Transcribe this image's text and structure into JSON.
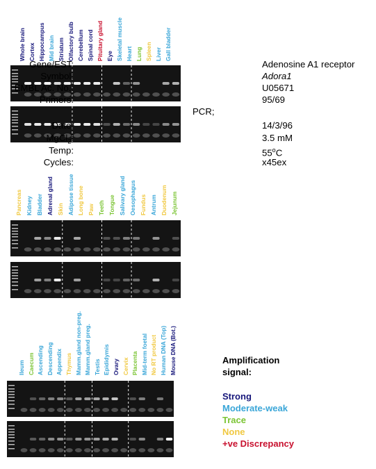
{
  "colors": {
    "strong": "#16167a",
    "moderate": "#3aa6d8",
    "trace": "#7bc434",
    "none": "#f0c840",
    "discrepancy": "#c8102e"
  },
  "panels": [
    {
      "lanes": [
        {
          "label": "Whole brain",
          "signal": "strong"
        },
        {
          "label": "Cortex",
          "signal": "strong"
        },
        {
          "label": "Hippocampus",
          "signal": "strong"
        },
        {
          "label": "Mid brain",
          "signal": "moderate"
        },
        {
          "label": "Striatum",
          "signal": "strong"
        },
        {
          "label": "Olfactory bulb",
          "signal": "strong"
        },
        {
          "label": "Cerebellum",
          "signal": "strong"
        },
        {
          "label": "Spinal cord",
          "signal": "strong"
        },
        {
          "label": "Pituitary gland",
          "signal": "discrepancy"
        },
        {
          "label": "Eye",
          "signal": "strong"
        },
        {
          "label": "Skeletal muscle",
          "signal": "moderate"
        },
        {
          "label": "Heart",
          "signal": "moderate"
        },
        {
          "label": "Lung",
          "signal": "trace"
        },
        {
          "label": "Spleen",
          "signal": "none"
        },
        {
          "label": "Liver",
          "signal": "moderate"
        },
        {
          "label": "Gall bladder",
          "signal": "moderate"
        }
      ]
    },
    {
      "lanes": [
        {
          "label": "Pancreas",
          "signal": "none"
        },
        {
          "label": "Kidney",
          "signal": "moderate"
        },
        {
          "label": "Bladder",
          "signal": "moderate"
        },
        {
          "label": "Adrenal gland",
          "signal": "strong"
        },
        {
          "label": "Skin",
          "signal": "none"
        },
        {
          "label": "Adipose tissue",
          "signal": "moderate"
        },
        {
          "label": "Long bone",
          "signal": "none"
        },
        {
          "label": "Paw",
          "signal": "none"
        },
        {
          "label": "Teeth",
          "signal": "trace"
        },
        {
          "label": "Tongue",
          "signal": "trace"
        },
        {
          "label": "Salivary gland",
          "signal": "moderate"
        },
        {
          "label": "Oesophagus",
          "signal": "moderate"
        },
        {
          "label": "Fundus",
          "signal": "none"
        },
        {
          "label": "Antrum",
          "signal": "moderate"
        },
        {
          "label": "Duodenum",
          "signal": "none"
        },
        {
          "label": "Jejunum",
          "signal": "trace"
        }
      ]
    },
    {
      "lanes": [
        {
          "label": "Ileum",
          "signal": "moderate"
        },
        {
          "label": "Caecum",
          "signal": "trace"
        },
        {
          "label": "Ascending",
          "signal": "moderate"
        },
        {
          "label": "Descending",
          "signal": "moderate"
        },
        {
          "label": "Appendix",
          "signal": "moderate"
        },
        {
          "label": "Thymus",
          "signal": "none"
        },
        {
          "label": "Mamm.gland non-preg.",
          "signal": "moderate"
        },
        {
          "label": "Mamm.gland preg.",
          "signal": "moderate"
        },
        {
          "label": "Testis",
          "signal": "moderate"
        },
        {
          "label": "Epididymis",
          "signal": "moderate"
        },
        {
          "label": "Ovary",
          "signal": "strong"
        },
        {
          "label": "Cervix",
          "signal": "none"
        },
        {
          "label": "Placenta",
          "signal": "trace"
        },
        {
          "label": "Mid-term foetal",
          "signal": "moderate"
        },
        {
          "label": "No RT product",
          "signal": "none"
        },
        {
          "label": "Human DNA (Top)",
          "signal": "moderate"
        },
        {
          "label": "Mouse DNA (Bot.)",
          "signal": "strong"
        }
      ]
    }
  ],
  "gels": [
    {
      "bands": [
        0.9,
        0.95,
        0.95,
        0.8,
        0.9,
        0.9,
        0.9,
        0.9,
        0.0,
        0.7,
        0.2,
        0.45,
        0.0,
        0.0,
        0.55,
        0.6
      ]
    },
    {
      "bands": [
        0.85,
        0.9,
        0.9,
        0.8,
        0.9,
        0.9,
        0.9,
        0.85,
        0.1,
        0.6,
        0.25,
        0.4,
        0.05,
        0.05,
        0.4,
        0.45
      ]
    },
    {
      "bands": [
        0.0,
        0.55,
        0.4,
        0.9,
        0.0,
        0.55,
        0.0,
        0.0,
        0.1,
        0.1,
        0.35,
        0.3,
        0.0,
        0.45,
        0.0,
        0.1
      ]
    },
    {
      "bands": [
        0.0,
        0.5,
        0.35,
        0.9,
        0.0,
        0.5,
        0.0,
        0.0,
        0.05,
        0.05,
        0.2,
        0.25,
        0.0,
        0.6,
        0.0,
        0.05
      ]
    },
    {
      "bands": [
        0.0,
        0.1,
        0.2,
        0.35,
        0.4,
        0.15,
        0.5,
        0.5,
        0.55,
        0.6,
        0.7,
        0.0,
        0.1,
        0.35,
        0.0,
        0.3,
        0.0
      ]
    },
    {
      "bands": [
        0.0,
        0.15,
        0.2,
        0.4,
        0.45,
        0.15,
        0.45,
        0.45,
        0.5,
        0.55,
        0.6,
        0.0,
        0.1,
        0.4,
        0.0,
        0.35,
        1.0
      ]
    }
  ],
  "info": {
    "rows": [
      {
        "label": "Gene/EST:",
        "value": "Adenosine A1 receptor",
        "italic": false
      },
      {
        "label": "Symbol:",
        "value": "Adora1",
        "italic": true
      },
      {
        "label": "EMBL Ac. No.:",
        "value": "U05671",
        "italic": false
      },
      {
        "label": "Primers:",
        "value": "95/69",
        "italic": false
      }
    ],
    "pcr_label": "PCR;",
    "pcr_rows": [
      {
        "label": "Date:",
        "value": "14/3/96"
      },
      {
        "label": "MgCl",
        "sub": "2",
        "label_suffix": ":",
        "value": "3.5 mM"
      },
      {
        "label": "Temp:",
        "value": "55",
        "sup": "o",
        "value_suffix": "C"
      },
      {
        "label": "Cycles:",
        "value": "x45ex"
      }
    ]
  },
  "legend": {
    "title_line1": "Amplification",
    "title_line2": "signal:",
    "items": [
      {
        "label": "Strong",
        "color": "#16167a"
      },
      {
        "label": "Moderate-weak",
        "color": "#3aa6d8"
      },
      {
        "label": "Trace",
        "color": "#7bc434"
      },
      {
        "label": "None",
        "color": "#f0c840"
      },
      {
        "label": "+ve Discrepancy",
        "color": "#c8102e"
      }
    ]
  }
}
